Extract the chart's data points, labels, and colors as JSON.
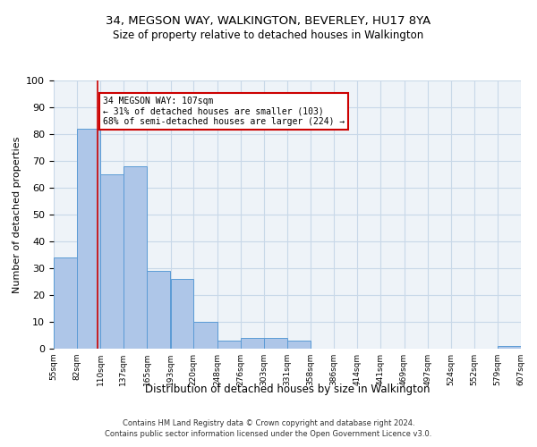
{
  "title1": "34, MEGSON WAY, WALKINGTON, BEVERLEY, HU17 8YA",
  "title2": "Size of property relative to detached houses in Walkington",
  "xlabel": "Distribution of detached houses by size in Walkington",
  "ylabel": "Number of detached properties",
  "annotation_line1": "34 MEGSON WAY: 107sqm",
  "annotation_line2": "← 31% of detached houses are smaller (103)",
  "annotation_line3": "68% of semi-detached houses are larger (224) →",
  "property_size_sqm": 107,
  "bin_edges": [
    55,
    82,
    110,
    137,
    165,
    193,
    220,
    248,
    276,
    303,
    331,
    358,
    386,
    414,
    441,
    469,
    497,
    524,
    552,
    579,
    607
  ],
  "bar_values": [
    34,
    82,
    65,
    68,
    29,
    26,
    10,
    3,
    4,
    4,
    3,
    0,
    0,
    0,
    0,
    0,
    0,
    0,
    0,
    1
  ],
  "bar_color": "#aec6e8",
  "bar_edge_color": "#5b9bd5",
  "grid_color": "#c8d8e8",
  "bg_color": "#eef3f8",
  "marker_color": "#cc0000",
  "footer_text": "Contains HM Land Registry data © Crown copyright and database right 2024.\nContains public sector information licensed under the Open Government Licence v3.0.",
  "ylim": [
    0,
    100
  ],
  "yticks": [
    0,
    10,
    20,
    30,
    40,
    50,
    60,
    70,
    80,
    90,
    100
  ]
}
